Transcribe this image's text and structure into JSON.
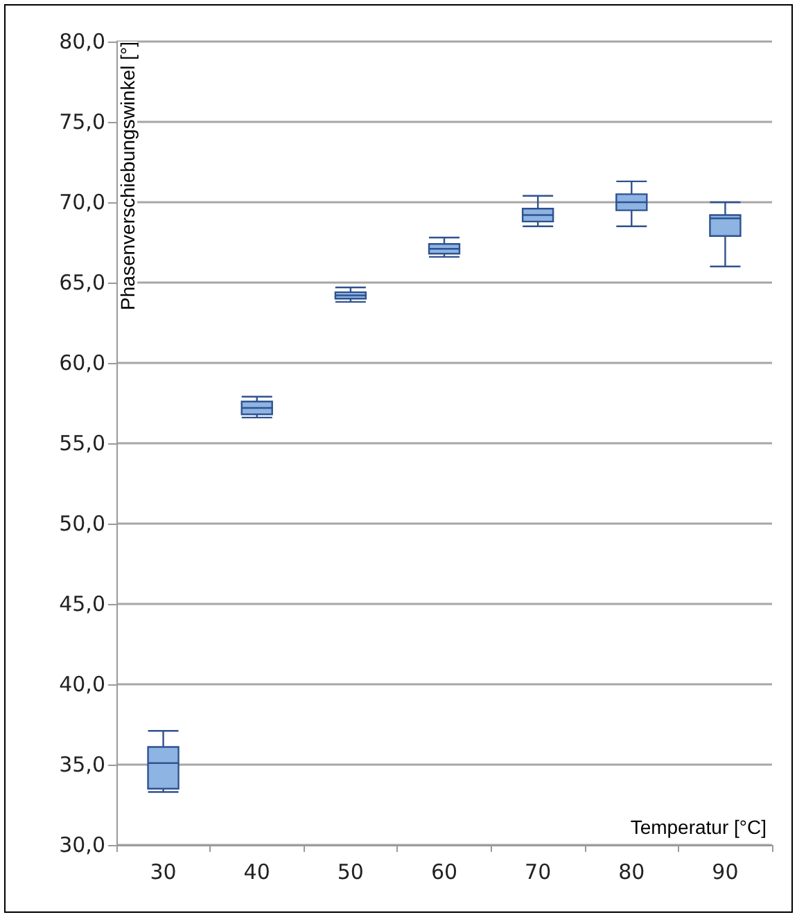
{
  "chart_data": {
    "type": "box",
    "xlabel": "Temperatur [°C]",
    "ylabel": "Phasenverschiebungswinkel [°]",
    "categories": [
      "30",
      "40",
      "50",
      "60",
      "70",
      "80",
      "90"
    ],
    "series": [
      {
        "color": "#8db4e2",
        "boxes": [
          {
            "low": 33.3,
            "q1": 33.5,
            "median": 35.1,
            "q3": 36.1,
            "high": 37.1
          },
          {
            "low": 56.6,
            "q1": 56.8,
            "median": 57.2,
            "q3": 57.6,
            "high": 57.9
          },
          {
            "low": 63.8,
            "q1": 64.0,
            "median": 64.2,
            "q3": 64.4,
            "high": 64.7
          },
          {
            "low": 66.6,
            "q1": 66.8,
            "median": 67.1,
            "q3": 67.4,
            "high": 67.8
          },
          {
            "low": 68.5,
            "q1": 68.8,
            "median": 69.2,
            "q3": 69.6,
            "high": 70.4
          },
          {
            "low": 68.5,
            "q1": 69.5,
            "median": 70.0,
            "q3": 70.5,
            "high": 71.3
          },
          {
            "low": 66.0,
            "q1": 67.9,
            "median": 69.0,
            "q3": 69.2,
            "high": 70.0
          }
        ]
      }
    ],
    "ylim": [
      30,
      80
    ],
    "yticks": [
      {
        "value": 30,
        "label": "30,0"
      },
      {
        "value": 35,
        "label": "35,0"
      },
      {
        "value": 40,
        "label": "40,0"
      },
      {
        "value": 45,
        "label": "45,0"
      },
      {
        "value": 50,
        "label": "50,0"
      },
      {
        "value": 55,
        "label": "55,0"
      },
      {
        "value": 60,
        "label": "60,0"
      },
      {
        "value": 65,
        "label": "65,0"
      },
      {
        "value": 70,
        "label": "70,0"
      },
      {
        "value": 75,
        "label": "75,0"
      },
      {
        "value": 80,
        "label": "80,0"
      }
    ],
    "grid": "y"
  }
}
